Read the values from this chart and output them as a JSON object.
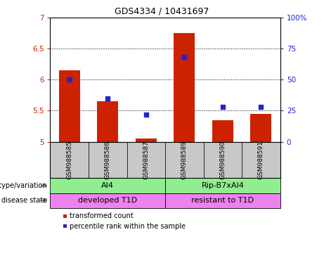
{
  "title": "GDS4334 / 10431697",
  "samples": [
    "GSM988585",
    "GSM988586",
    "GSM988587",
    "GSM988589",
    "GSM988590",
    "GSM988591"
  ],
  "bar_values": [
    6.15,
    5.65,
    5.05,
    6.75,
    5.35,
    5.45
  ],
  "percentile_values": [
    50,
    35,
    22,
    68,
    28,
    28
  ],
  "ylim_left": [
    5.0,
    7.0
  ],
  "ylim_right": [
    0,
    100
  ],
  "bar_color": "#cc2200",
  "dot_color": "#2222cc",
  "yticks_left": [
    5.0,
    5.5,
    6.0,
    6.5,
    7.0
  ],
  "yticks_right": [
    0,
    25,
    50,
    75,
    100
  ],
  "ytick_labels_left": [
    "5",
    "5.5",
    "6",
    "6.5",
    "7"
  ],
  "ytick_labels_right": [
    "0",
    "25",
    "50",
    "75",
    "100%"
  ],
  "genotype_labels": [
    "AI4",
    "Rip-B7xAI4"
  ],
  "genotype_sample_ranges": [
    [
      0,
      3
    ],
    [
      3,
      6
    ]
  ],
  "genotype_color": "#90ee90",
  "disease_labels": [
    "developed T1D",
    "resistant to T1D"
  ],
  "disease_sample_ranges": [
    [
      0,
      3
    ],
    [
      3,
      6
    ]
  ],
  "disease_color": "#ee82ee",
  "legend_red": "transformed count",
  "legend_blue": "percentile rank within the sample",
  "row_label_genotype": "genotype/variation",
  "row_label_disease": "disease state",
  "bar_width": 0.55,
  "baseline": 5.0,
  "hgrid_values": [
    5.5,
    6.0,
    6.5
  ],
  "sample_label_color": "#c8c8c8",
  "title_fontsize": 9,
  "axis_fontsize": 7.5,
  "tick_fontsize": 7.5,
  "label_fontsize": 7,
  "sample_fontsize": 6.5
}
